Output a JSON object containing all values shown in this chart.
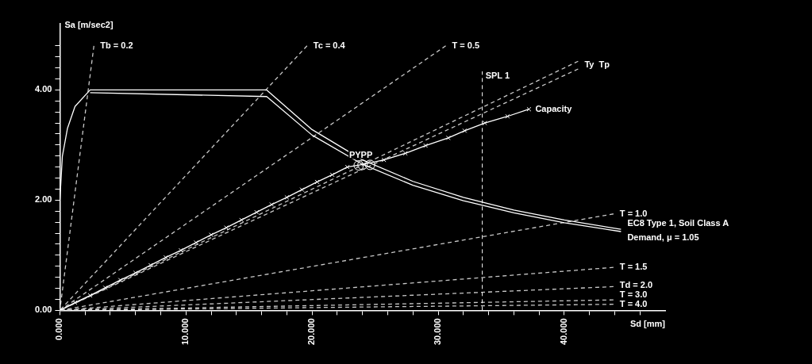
{
  "chart_data": {
    "type": "line",
    "xlabel": "Sd [mm]",
    "ylabel": "Sa [m/sec2]",
    "grid": false,
    "legend": false,
    "xlim": [
      0,
      48
    ],
    "ylim": [
      0,
      5.2
    ],
    "xticks": [
      {
        "value": 0,
        "label": "0.000"
      },
      {
        "value": 2,
        "label": null
      },
      {
        "value": 4,
        "label": null
      },
      {
        "value": 6,
        "label": null
      },
      {
        "value": 8,
        "label": null
      },
      {
        "value": 10,
        "label": "10.000"
      },
      {
        "value": 12,
        "label": null
      },
      {
        "value": 14,
        "label": null
      },
      {
        "value": 16,
        "label": null
      },
      {
        "value": 18,
        "label": null
      },
      {
        "value": 20,
        "label": "20.000"
      },
      {
        "value": 22,
        "label": null
      },
      {
        "value": 24,
        "label": null
      },
      {
        "value": 26,
        "label": null
      },
      {
        "value": 28,
        "label": null
      },
      {
        "value": 30,
        "label": "30.000"
      },
      {
        "value": 32,
        "label": null
      },
      {
        "value": 34,
        "label": null
      },
      {
        "value": 36,
        "label": null
      },
      {
        "value": 38,
        "label": null
      },
      {
        "value": 40,
        "label": "40.000"
      },
      {
        "value": 42,
        "label": null
      },
      {
        "value": 44,
        "label": null
      },
      {
        "value": 46,
        "label": null
      }
    ],
    "yticks": [
      {
        "value": 0,
        "label": "0.00"
      },
      {
        "value": 0.2,
        "label": null
      },
      {
        "value": 0.4,
        "label": null
      },
      {
        "value": 0.6,
        "label": null
      },
      {
        "value": 0.8,
        "label": null
      },
      {
        "value": 1,
        "label": null
      },
      {
        "value": 1.2,
        "label": null
      },
      {
        "value": 1.4,
        "label": null
      },
      {
        "value": 1.6,
        "label": null
      },
      {
        "value": 1.8,
        "label": null
      },
      {
        "value": 2,
        "label": "2.00"
      },
      {
        "value": 2.2,
        "label": null
      },
      {
        "value": 2.4,
        "label": null
      },
      {
        "value": 2.6,
        "label": null
      },
      {
        "value": 2.8,
        "label": null
      },
      {
        "value": 3,
        "label": null
      },
      {
        "value": 3.2,
        "label": null
      },
      {
        "value": 3.4,
        "label": null
      },
      {
        "value": 3.6,
        "label": null
      },
      {
        "value": 3.8,
        "label": null
      },
      {
        "value": 4,
        "label": "4.00"
      },
      {
        "value": 4.2,
        "label": null
      },
      {
        "value": 4.4,
        "label": null
      },
      {
        "value": 4.6,
        "label": null
      },
      {
        "value": 4.8,
        "label": null
      }
    ],
    "series": [
      {
        "name": "EC8 Type 1, Soil Class A",
        "color": "#ffffff",
        "line_style": "solid",
        "marker": "none",
        "x": [
          0,
          0.2,
          0.6,
          1.2,
          2.4,
          16.4,
          20,
          24,
          28,
          32,
          36,
          40,
          44.5
        ],
        "values": [
          2.0,
          2.8,
          3.3,
          3.7,
          4.0,
          4.0,
          3.28,
          2.73,
          2.34,
          2.05,
          1.82,
          1.64,
          1.47
        ]
      },
      {
        "name": "Demand, μ = 1.05",
        "color": "#ffffff",
        "line_style": "solid",
        "marker": "none",
        "x": [
          2.4,
          16.4,
          20,
          24,
          28,
          32,
          36,
          40,
          44.5
        ],
        "values": [
          3.95,
          3.88,
          3.18,
          2.65,
          2.27,
          1.99,
          1.77,
          1.59,
          1.43
        ]
      },
      {
        "name": "Capacity",
        "color": "#ffffff",
        "line_style": "solid",
        "marker": "cross",
        "x": [
          0,
          1.2,
          2.4,
          3.6,
          4.8,
          6,
          7.2,
          8.4,
          9.6,
          10.8,
          12,
          13.2,
          14.4,
          15.6,
          16.8,
          18,
          19.2,
          20.4,
          21.6,
          22.8,
          24.1,
          25.7,
          27.4,
          29.0,
          30.8,
          32.1,
          33.7,
          35.5,
          37.2
        ],
        "values": [
          0,
          0.14,
          0.27,
          0.41,
          0.55,
          0.68,
          0.82,
          0.96,
          1.09,
          1.23,
          1.37,
          1.5,
          1.64,
          1.78,
          1.92,
          2.05,
          2.19,
          2.33,
          2.46,
          2.6,
          2.65,
          2.73,
          2.85,
          2.99,
          3.13,
          3.26,
          3.4,
          3.52,
          3.65
        ]
      },
      {
        "name": "Tb = 0.2",
        "color": "#c8c8c8",
        "line_style": "dashed",
        "marker": "none",
        "x": [
          0,
          2.7
        ],
        "values": [
          0,
          4.8
        ]
      },
      {
        "name": "Tc = 0.4",
        "color": "#c8c8c8",
        "line_style": "dashed",
        "marker": "none",
        "x": [
          0,
          19.6
        ],
        "values": [
          0,
          4.8
        ]
      },
      {
        "name": "T = 0.5",
        "color": "#c8c8c8",
        "line_style": "dashed",
        "marker": "none",
        "x": [
          0,
          30.6
        ],
        "values": [
          0,
          4.8
        ]
      },
      {
        "color": "#c8c8c8",
        "line_style": "dashed",
        "marker": "none",
        "x": [
          0,
          41.1
        ],
        "values": [
          0,
          4.52
        ]
      },
      {
        "color": "#c8c8c8",
        "line_style": "dashed",
        "marker": "none",
        "x": [
          0,
          41.1
        ],
        "values": [
          0,
          4.38
        ]
      },
      {
        "name": "T = 1.0",
        "color": "#c8c8c8",
        "line_style": "dashed",
        "marker": "none",
        "x": [
          0,
          43.9
        ],
        "values": [
          0,
          1.75
        ]
      },
      {
        "name": "T = 1.5",
        "color": "#c8c8c8",
        "line_style": "dashed",
        "marker": "none",
        "x": [
          0,
          43.9
        ],
        "values": [
          0,
          0.78
        ]
      },
      {
        "name": "Td = 2.0",
        "color": "#c8c8c8",
        "line_style": "dashed",
        "marker": "none",
        "x": [
          0,
          43.9
        ],
        "values": [
          0,
          0.43
        ]
      },
      {
        "name": "T = 3.0",
        "color": "#c8c8c8",
        "line_style": "dashed",
        "marker": "none",
        "x": [
          0,
          43.9
        ],
        "values": [
          0,
          0.19
        ]
      },
      {
        "name": "T = 4.0",
        "color": "#c8c8c8",
        "line_style": "dashed",
        "marker": "none",
        "x": [
          0,
          43.9
        ],
        "values": [
          0,
          0.11
        ]
      },
      {
        "name": "PYPP",
        "type": "scatter",
        "color": "#ffffff",
        "marker": "circle",
        "x": [
          23.7,
          24.0,
          24.6
        ],
        "values": [
          2.63,
          2.64,
          2.64
        ]
      }
    ],
    "ref_lines": [
      {
        "axis": "x",
        "value": 33.5,
        "label": "SPL 1",
        "color": "#ffffff",
        "line_style": "dashed"
      }
    ],
    "annotations": [
      {
        "text": "Ty  Tp",
        "x": 41.1,
        "y": 4.45
      }
    ]
  }
}
